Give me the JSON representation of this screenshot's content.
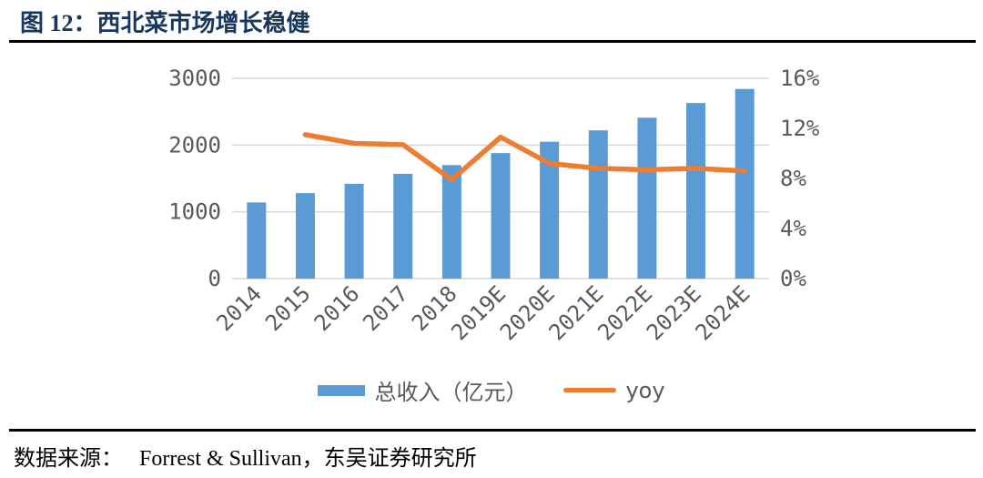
{
  "page": {
    "title": "图 12：西北菜市场增长稳健",
    "source_label": "数据来源：",
    "source_text": "Forrest & Sullivan，东吴证券研究所"
  },
  "colors": {
    "bar": "#5B9BD5",
    "line": "#ED7D31",
    "axis_text": "#595959",
    "gridline": "#D9D9D9",
    "title_text": "#17375E",
    "rule": "#000000"
  },
  "chart_data": {
    "type": "bar+line combo, dual y-axis",
    "title": "西北菜市场增长稳健",
    "categories": [
      "2014",
      "2015",
      "2016",
      "2017",
      "2018",
      "2019E",
      "2020E",
      "2021E",
      "2022E",
      "2023E",
      "2024E"
    ],
    "series": [
      {
        "name": "总收入（亿元）",
        "type": "bar",
        "yaxis": "left",
        "color": "#5B9BD5",
        "values": [
          1140,
          1280,
          1420,
          1570,
          1700,
          1880,
          2050,
          2220,
          2410,
          2630,
          2840
        ]
      },
      {
        "name": "yoy",
        "type": "line",
        "yaxis": "right",
        "color": "#ED7D31",
        "unit": "%",
        "values": [
          null,
          11.5,
          10.8,
          10.7,
          7.9,
          11.3,
          9.2,
          8.8,
          8.7,
          8.8,
          8.6
        ]
      }
    ],
    "left_axis": {
      "min": 0,
      "max": 3000,
      "tick_values": [
        0,
        1000,
        2000,
        3000
      ],
      "tick_labels": [
        "0",
        "1000",
        "2000",
        "3000"
      ]
    },
    "right_axis": {
      "min": 0,
      "max": 16,
      "tick_values": [
        0,
        4,
        8,
        12,
        16
      ],
      "tick_labels": [
        "0%",
        "4%",
        "8%",
        "12%",
        "16%"
      ]
    },
    "grid": "horizontal gridlines at left-axis ticks",
    "legend_position": "bottom",
    "x_label_rotation": -45
  }
}
